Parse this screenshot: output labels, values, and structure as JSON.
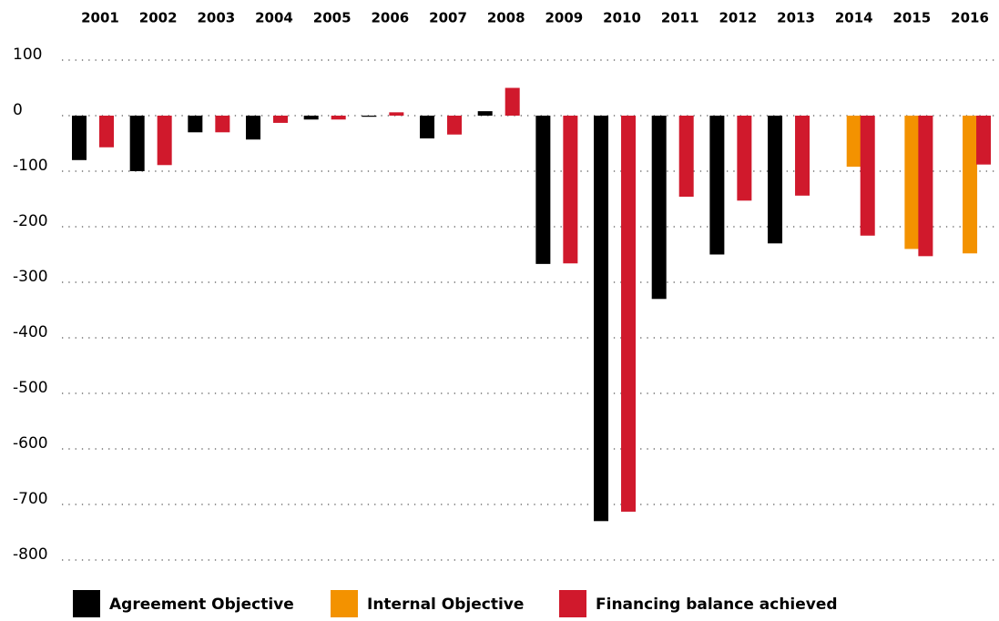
{
  "chart_data": {
    "type": "bar",
    "categories": [
      "2001",
      "2002",
      "2003",
      "2004",
      "2005",
      "2006",
      "2007",
      "2008",
      "2009",
      "2010",
      "2011",
      "2012",
      "2013",
      "2014",
      "2015",
      "2016"
    ],
    "series": [
      {
        "name": "Agreement Objective",
        "color": "#000000",
        "values": [
          -80,
          -100,
          -30,
          -43,
          -7,
          -2,
          -41,
          8,
          -267,
          -730,
          -330,
          -250,
          -230,
          null,
          null,
          null
        ]
      },
      {
        "name": "Internal Objective",
        "color": "#f39200",
        "values": [
          null,
          null,
          null,
          null,
          null,
          null,
          null,
          null,
          null,
          null,
          null,
          null,
          null,
          -92,
          -240,
          -248
        ]
      },
      {
        "name": "Financing balance achieved",
        "color": "#d0192c",
        "values": [
          -57,
          -89,
          -30,
          -13,
          -7,
          6,
          -34,
          50,
          -266,
          -713,
          -146,
          -153,
          -144,
          -216,
          -253,
          -88
        ]
      }
    ],
    "ylim": [
      100,
      -800
    ],
    "yticks": [
      100,
      0,
      -100,
      -200,
      -300,
      -400,
      -500,
      -600,
      -700,
      -800
    ],
    "grid": true
  }
}
